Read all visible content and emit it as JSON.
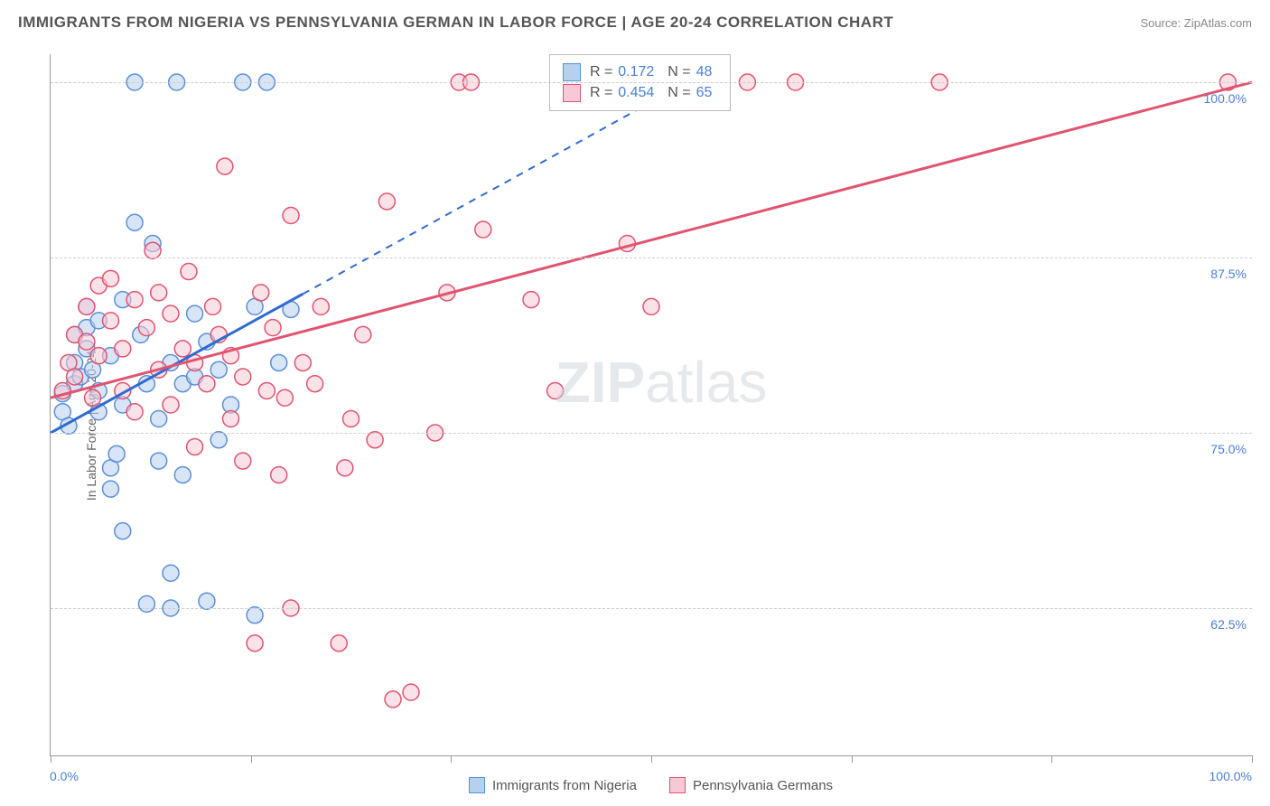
{
  "header": {
    "title": "IMMIGRANTS FROM NIGERIA VS PENNSYLVANIA GERMAN IN LABOR FORCE | AGE 20-24 CORRELATION CHART",
    "source": "Source: ZipAtlas.com"
  },
  "chart": {
    "type": "scatter",
    "ylabel": "In Labor Force | Age 20-24",
    "xlim": [
      0,
      100
    ],
    "ylim": [
      52,
      102
    ],
    "y_gridlines": [
      62.5,
      75.0,
      87.5,
      100.0
    ],
    "y_tick_labels": [
      "62.5%",
      "75.0%",
      "87.5%",
      "100.0%"
    ],
    "x_ticks": [
      0,
      16.67,
      33.33,
      50.0,
      66.67,
      83.33,
      100.0
    ],
    "x_axis_left_label": "0.0%",
    "x_axis_right_label": "100.0%",
    "background_color": "#ffffff",
    "grid_color": "#cccccc",
    "axis_color": "#999999",
    "series": [
      {
        "name": "Immigrants from Nigeria",
        "marker_fill": "#b8d0ef",
        "marker_stroke": "#5a8fd8",
        "marker_radius": 9,
        "fill_opacity": 0.55,
        "line_color": "#2e6bd0",
        "line_width": 3,
        "line_dash_after_x": 21,
        "trend_start": [
          0,
          75.0
        ],
        "trend_end": [
          53,
          100.0
        ],
        "R": "0.172",
        "N": "48",
        "points": [
          [
            1,
            77.8
          ],
          [
            1,
            76.5
          ],
          [
            1.5,
            75.5
          ],
          [
            2,
            78.5
          ],
          [
            2,
            80.0
          ],
          [
            2,
            82.0
          ],
          [
            2.5,
            79.0
          ],
          [
            3,
            81.0
          ],
          [
            3,
            82.5
          ],
          [
            3,
            84.0
          ],
          [
            3.5,
            79.5
          ],
          [
            4,
            76.5
          ],
          [
            4,
            78.0
          ],
          [
            4,
            83.0
          ],
          [
            5,
            80.5
          ],
          [
            5,
            72.5
          ],
          [
            5,
            71.0
          ],
          [
            5.5,
            73.5
          ],
          [
            6,
            68.0
          ],
          [
            6,
            84.5
          ],
          [
            6,
            77.0
          ],
          [
            7,
            100.0
          ],
          [
            7,
            90.0
          ],
          [
            7.5,
            82.0
          ],
          [
            8,
            62.8
          ],
          [
            8,
            78.5
          ],
          [
            8.5,
            88.5
          ],
          [
            9,
            76.0
          ],
          [
            9,
            73.0
          ],
          [
            10,
            62.5
          ],
          [
            10,
            80.0
          ],
          [
            10,
            65.0
          ],
          [
            10.5,
            100.0
          ],
          [
            11,
            78.5
          ],
          [
            11,
            72.0
          ],
          [
            12,
            83.5
          ],
          [
            12,
            79.0
          ],
          [
            13,
            63.0
          ],
          [
            13,
            81.5
          ],
          [
            14,
            74.5
          ],
          [
            14,
            79.5
          ],
          [
            15,
            77.0
          ],
          [
            16,
            100.0
          ],
          [
            17,
            84.0
          ],
          [
            17,
            62.0
          ],
          [
            18,
            100.0
          ],
          [
            19,
            80.0
          ],
          [
            20,
            83.8
          ]
        ]
      },
      {
        "name": "Pennsylvania Germans",
        "marker_fill": "#f7c8d5",
        "marker_stroke": "#e0546f",
        "marker_radius": 9,
        "fill_opacity": 0.55,
        "line_color": "#e0546f",
        "line_width": 3,
        "line_dash_after_x": 100,
        "trend_start": [
          0,
          77.5
        ],
        "trend_end": [
          100,
          100.0
        ],
        "R": "0.454",
        "N": "65",
        "points": [
          [
            1,
            78.0
          ],
          [
            1.5,
            80.0
          ],
          [
            2,
            82.0
          ],
          [
            2,
            79.0
          ],
          [
            3,
            81.5
          ],
          [
            3,
            84.0
          ],
          [
            3.5,
            77.5
          ],
          [
            4,
            85.5
          ],
          [
            4,
            80.5
          ],
          [
            5,
            83.0
          ],
          [
            5,
            86.0
          ],
          [
            6,
            78.0
          ],
          [
            6,
            81.0
          ],
          [
            7,
            84.5
          ],
          [
            7,
            76.5
          ],
          [
            8,
            82.5
          ],
          [
            8.5,
            88.0
          ],
          [
            9,
            79.5
          ],
          [
            9,
            85.0
          ],
          [
            10,
            77.0
          ],
          [
            10,
            83.5
          ],
          [
            11,
            81.0
          ],
          [
            11.5,
            86.5
          ],
          [
            12,
            74.0
          ],
          [
            12,
            80.0
          ],
          [
            13,
            78.5
          ],
          [
            13.5,
            84.0
          ],
          [
            14,
            82.0
          ],
          [
            14.5,
            94.0
          ],
          [
            15,
            76.0
          ],
          [
            15,
            80.5
          ],
          [
            16,
            73.0
          ],
          [
            16,
            79.0
          ],
          [
            17,
            60.0
          ],
          [
            17.5,
            85.0
          ],
          [
            18,
            78.0
          ],
          [
            18.5,
            82.5
          ],
          [
            19,
            72.0
          ],
          [
            19.5,
            77.5
          ],
          [
            20,
            62.5
          ],
          [
            20,
            90.5
          ],
          [
            21,
            80.0
          ],
          [
            22,
            78.5
          ],
          [
            22.5,
            84.0
          ],
          [
            24,
            60.0
          ],
          [
            24.5,
            72.5
          ],
          [
            25,
            76.0
          ],
          [
            26,
            82.0
          ],
          [
            27,
            74.5
          ],
          [
            28,
            91.5
          ],
          [
            28.5,
            56.0
          ],
          [
            30,
            56.5
          ],
          [
            32,
            75.0
          ],
          [
            33,
            85.0
          ],
          [
            34,
            100.0
          ],
          [
            35,
            100.0
          ],
          [
            36,
            89.5
          ],
          [
            40,
            84.5
          ],
          [
            42,
            78.0
          ],
          [
            48,
            88.5
          ],
          [
            50,
            84.0
          ],
          [
            58,
            100.0
          ],
          [
            62,
            100.0
          ],
          [
            74,
            100.0
          ],
          [
            98,
            100.0
          ]
        ]
      }
    ],
    "stats_box": {
      "top_pct": 0.0,
      "left_pct": 41.5
    },
    "bottom_legend_series": [
      "Immigrants from Nigeria",
      "Pennsylvania Germans"
    ]
  },
  "watermark": {
    "text_bold": "ZIP",
    "text_light": "atlas"
  }
}
